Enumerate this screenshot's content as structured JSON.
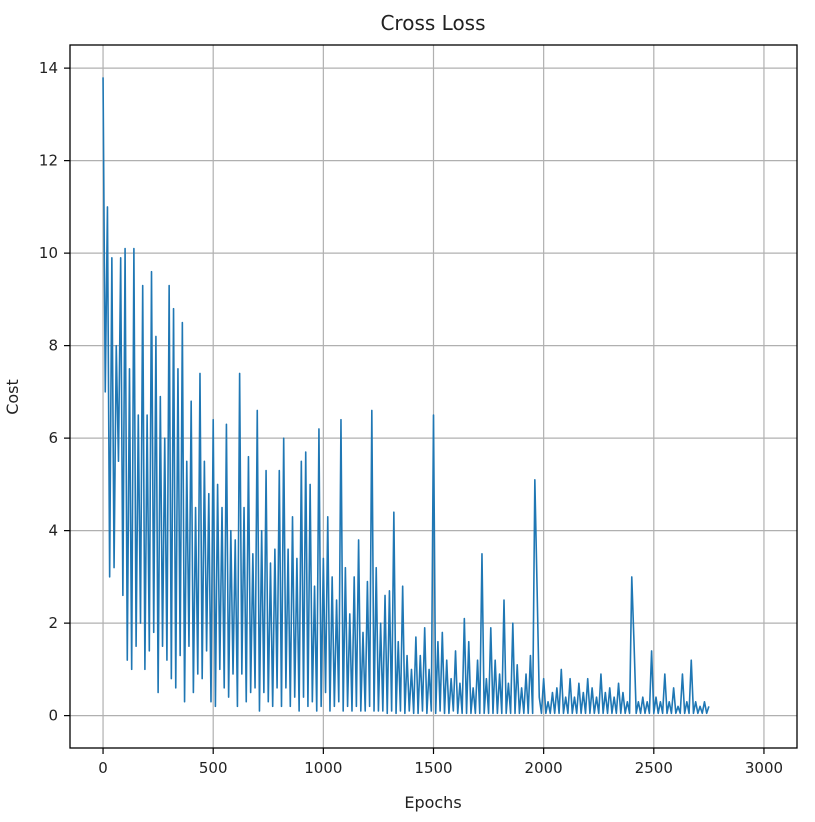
{
  "chart_data": {
    "type": "line",
    "title": "Cross Loss",
    "xlabel": "Epochs",
    "ylabel": "Cost",
    "xlim": [
      -150,
      3150
    ],
    "ylim": [
      -0.7,
      14.5
    ],
    "xticks": [
      0,
      500,
      1000,
      1500,
      2000,
      2500,
      3000
    ],
    "yticks": [
      0,
      2,
      4,
      6,
      8,
      10,
      12,
      14
    ],
    "grid": true,
    "color": "#1f77b4",
    "series": [
      {
        "x_start": 0,
        "x_step": 10,
        "values": [
          13.8,
          7.0,
          11.0,
          3.0,
          9.9,
          3.2,
          8.0,
          5.5,
          9.9,
          2.6,
          10.1,
          1.2,
          7.5,
          1.0,
          10.1,
          1.5,
          6.5,
          2.0,
          9.3,
          1.0,
          6.5,
          1.4,
          9.6,
          1.8,
          8.2,
          0.5,
          6.9,
          1.5,
          6.0,
          1.2,
          9.3,
          0.8,
          8.8,
          0.6,
          7.5,
          1.3,
          8.5,
          0.3,
          5.5,
          1.5,
          6.8,
          0.5,
          4.5,
          0.9,
          7.4,
          0.8,
          5.5,
          1.4,
          4.8,
          0.3,
          6.4,
          0.2,
          5.0,
          1.0,
          4.5,
          0.6,
          6.3,
          0.4,
          4.0,
          0.9,
          3.8,
          0.2,
          7.4,
          0.9,
          4.5,
          0.3,
          5.6,
          0.5,
          3.5,
          0.6,
          6.6,
          0.1,
          4.0,
          0.5,
          5.3,
          0.3,
          3.3,
          0.2,
          3.6,
          0.6,
          5.3,
          0.2,
          6.0,
          0.6,
          3.6,
          0.2,
          4.3,
          0.4,
          3.4,
          0.1,
          5.5,
          0.4,
          5.7,
          0.2,
          5.0,
          0.3,
          2.8,
          0.1,
          6.2,
          0.2,
          3.4,
          0.5,
          4.3,
          0.1,
          3.0,
          0.2,
          2.5,
          0.3,
          6.4,
          0.1,
          3.2,
          0.2,
          2.2,
          0.1,
          3.0,
          0.2,
          3.8,
          0.1,
          1.8,
          0.1,
          2.9,
          0.2,
          6.6,
          0.1,
          3.2,
          0.1,
          2.0,
          0.1,
          2.6,
          0.05,
          2.7,
          0.1,
          4.4,
          0.05,
          1.6,
          0.1,
          2.8,
          0.05,
          1.3,
          0.1,
          1.0,
          0.05,
          1.7,
          0.05,
          1.3,
          0.1,
          1.9,
          0.05,
          1.0,
          0.1,
          6.5,
          0.05,
          1.6,
          0.1,
          1.8,
          0.05,
          1.2,
          0.05,
          0.8,
          0.1,
          1.4,
          0.05,
          0.7,
          0.05,
          2.1,
          0.05,
          1.6,
          0.05,
          0.6,
          0.05,
          1.2,
          0.05,
          3.5,
          0.05,
          0.8,
          0.05,
          1.9,
          0.05,
          1.2,
          0.05,
          0.9,
          0.05,
          2.5,
          0.05,
          0.7,
          0.05,
          2.0,
          0.05,
          1.1,
          0.05,
          0.6,
          0.05,
          0.9,
          0.05,
          1.3,
          0.05,
          5.1,
          2.8,
          0.4,
          0.05,
          0.8,
          0.05,
          0.3,
          0.05,
          0.5,
          0.05,
          0.6,
          0.05,
          1.0,
          0.05,
          0.4,
          0.05,
          0.8,
          0.05,
          0.4,
          0.05,
          0.7,
          0.05,
          0.5,
          0.05,
          0.8,
          0.05,
          0.6,
          0.05,
          0.4,
          0.05,
          0.9,
          0.05,
          0.5,
          0.05,
          0.6,
          0.05,
          0.4,
          0.05,
          0.7,
          0.05,
          0.5,
          0.05,
          0.3,
          0.05,
          3.0,
          1.6,
          0.05,
          0.3,
          0.05,
          0.4,
          0.05,
          0.3,
          0.05,
          1.4,
          0.05,
          0.4,
          0.05,
          0.3,
          0.05,
          0.9,
          0.05,
          0.3,
          0.05,
          0.6,
          0.05,
          0.2,
          0.05,
          0.9,
          0.05,
          0.3,
          0.05,
          1.2,
          0.05,
          0.3,
          0.05,
          0.2,
          0.05,
          0.3,
          0.05,
          0.2
        ]
      }
    ]
  }
}
